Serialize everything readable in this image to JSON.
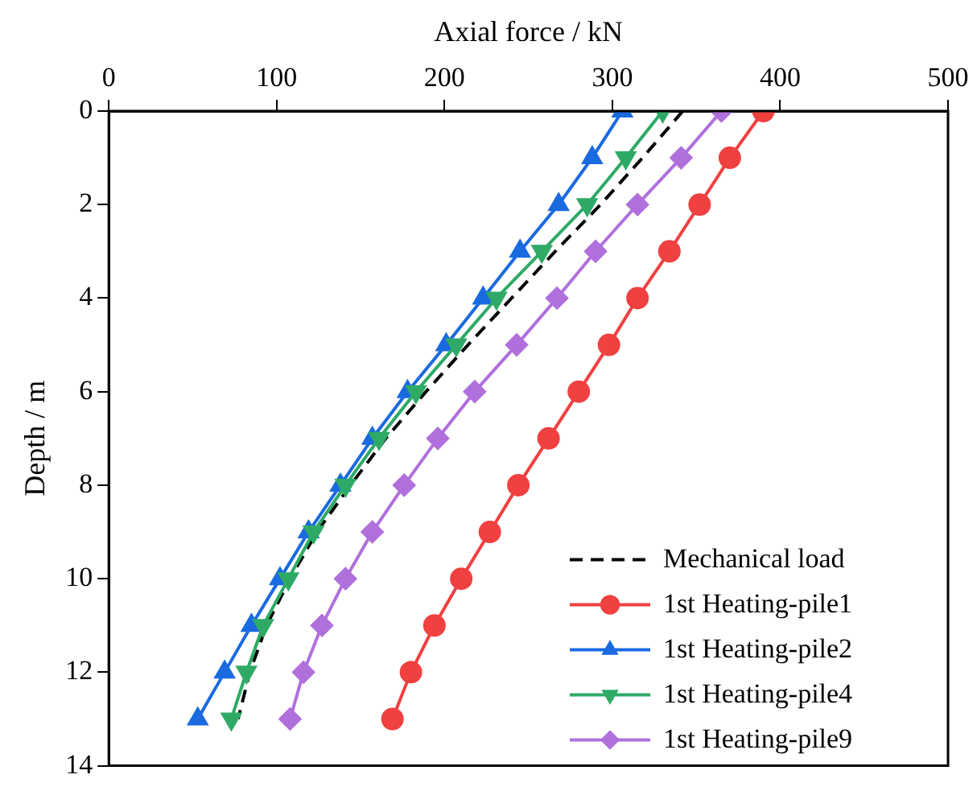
{
  "chart_data": {
    "type": "line",
    "xlabel": "Axial force / kN",
    "ylabel": "Depth / m",
    "xlim": [
      0,
      500
    ],
    "xticks": [
      0,
      100,
      200,
      300,
      400,
      500
    ],
    "ylim": [
      14,
      0
    ],
    "yticks": [
      0,
      2,
      4,
      6,
      8,
      10,
      12,
      14
    ],
    "grid": false,
    "legend": "bottom right",
    "series": [
      {
        "name": "Mechanical load",
        "color": "#000000",
        "marker": "none",
        "line_style": "dashed",
        "x": [
          342,
          318,
          293,
          266,
          240,
          214,
          189,
          165,
          144,
          124,
          108,
          94,
          84,
          77
        ],
        "values": [
          0,
          1,
          2,
          3,
          4,
          5,
          6,
          7,
          8,
          9,
          10,
          11,
          12,
          13
        ]
      },
      {
        "name": "1st Heating-pile1",
        "color": "#f04040",
        "marker": "circle",
        "line_style": "solid",
        "x": [
          390,
          370,
          352,
          334,
          315,
          298,
          280,
          262,
          244,
          227,
          210,
          194,
          180,
          169
        ],
        "values": [
          0,
          1,
          2,
          3,
          4,
          5,
          6,
          7,
          8,
          9,
          10,
          11,
          12,
          13
        ]
      },
      {
        "name": "1st Heating-pile2",
        "color": "#1a6ae0",
        "marker": "triangle",
        "line_style": "solid",
        "x": [
          306,
          288,
          268,
          245,
          223,
          201,
          178,
          157,
          138,
          119,
          102,
          85,
          69,
          53
        ],
        "values": [
          0,
          1,
          2,
          3,
          4,
          5,
          6,
          7,
          8,
          9,
          10,
          11,
          12,
          13
        ]
      },
      {
        "name": "1st Heating-pile4",
        "color": "#2eaa66",
        "marker": "triangle-down",
        "line_style": "solid",
        "x": [
          330,
          308,
          285,
          258,
          231,
          207,
          183,
          161,
          141,
          122,
          107,
          92,
          82,
          73
        ],
        "values": [
          0,
          1,
          2,
          3,
          4,
          5,
          6,
          7,
          8,
          9,
          10,
          11,
          12,
          13
        ]
      },
      {
        "name": "1st Heating-pile9",
        "color": "#b070dc",
        "marker": "diamond",
        "line_style": "solid",
        "x": [
          365,
          341,
          315,
          290,
          267,
          243,
          218,
          196,
          176,
          157,
          141,
          127,
          116,
          108
        ],
        "values": [
          0,
          1,
          2,
          3,
          4,
          5,
          6,
          7,
          8,
          9,
          10,
          11,
          12,
          13
        ]
      }
    ]
  }
}
